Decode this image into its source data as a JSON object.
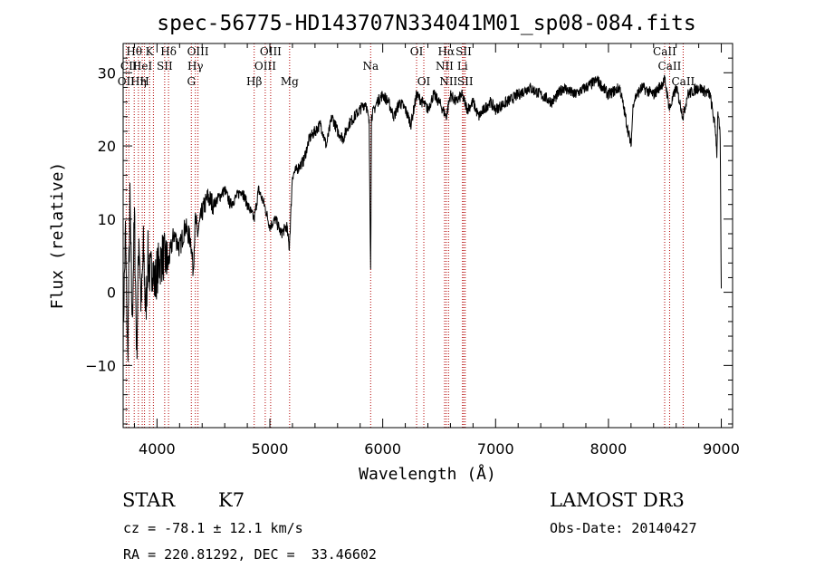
{
  "chart_data": {
    "type": "line",
    "title": "spec-56775-HD143707N334041M01_sp08-084.fits",
    "xlabel": "Wavelength (Å)",
    "ylabel": "Flux (relative)",
    "xlim": [
      3700,
      9100
    ],
    "ylim": [
      -18.5,
      34
    ],
    "x_ticks": [
      4000,
      5000,
      6000,
      7000,
      8000,
      9000
    ],
    "y_ticks": [
      -10,
      0,
      10,
      20,
      30
    ],
    "series": [
      {
        "name": "spectrum",
        "x": [
          3700,
          3720,
          3740,
          3760,
          3780,
          3800,
          3820,
          3840,
          3860,
          3880,
          3900,
          3920,
          3940,
          3960,
          3980,
          4000,
          4050,
          4100,
          4150,
          4200,
          4250,
          4300,
          4320,
          4340,
          4360,
          4400,
          4450,
          4500,
          4550,
          4600,
          4650,
          4700,
          4750,
          4800,
          4861,
          4900,
          4950,
          5000,
          5050,
          5100,
          5150,
          5172,
          5200,
          5250,
          5300,
          5350,
          5400,
          5450,
          5500,
          5550,
          5600,
          5650,
          5700,
          5750,
          5800,
          5850,
          5880,
          5893,
          5900,
          5950,
          6000,
          6050,
          6100,
          6150,
          6200,
          6250,
          6300,
          6350,
          6400,
          6450,
          6500,
          6563,
          6600,
          6650,
          6700,
          6750,
          6800,
          6850,
          6900,
          6950,
          7000,
          7100,
          7200,
          7300,
          7400,
          7500,
          7600,
          7700,
          7800,
          7900,
          8000,
          8100,
          8150,
          8200,
          8220,
          8250,
          8300,
          8400,
          8500,
          8542,
          8600,
          8662,
          8700,
          8800,
          8900,
          8950,
          8960,
          8970,
          8980,
          8990,
          9000
        ],
        "y": [
          -6,
          8,
          -9,
          12,
          -4,
          10,
          -8,
          8,
          -2,
          6,
          -3,
          5,
          2,
          4,
          1,
          3,
          5,
          4,
          8,
          6,
          9,
          7,
          3,
          10,
          8,
          11,
          13,
          12,
          13,
          14,
          12,
          13,
          14,
          12,
          10,
          14,
          12,
          9,
          10,
          8,
          9,
          6,
          16,
          17,
          18,
          21,
          22,
          23,
          20,
          24,
          22,
          21,
          23,
          24,
          25,
          26,
          23,
          3,
          24,
          26,
          27,
          26,
          24,
          26,
          25,
          23,
          27,
          26,
          25,
          27,
          26,
          24,
          27,
          26,
          27,
          25,
          26,
          24,
          25,
          26,
          25,
          26,
          27,
          28,
          27,
          26,
          28,
          27,
          28,
          29,
          27,
          28,
          24,
          20,
          26,
          27,
          28,
          27,
          29,
          25,
          28,
          24,
          27,
          28,
          27,
          22,
          19,
          25,
          23,
          21,
          0
        ]
      }
    ],
    "spectral_lines": [
      {
        "x": 3727,
        "label": "OII",
        "row": 3
      },
      {
        "x": 3750,
        "label": "CII",
        "row": 2
      },
      {
        "x": 3798,
        "label": "Hθ",
        "row": 1
      },
      {
        "x": 3835,
        "label": "Hη",
        "row": 3
      },
      {
        "x": 3869,
        "label": "HeI",
        "row": 2
      },
      {
        "x": 3889,
        "label": "H",
        "row": 3
      },
      {
        "x": 3934,
        "label": "K",
        "row": 1
      },
      {
        "x": 3968,
        "label": "",
        "row": 0
      },
      {
        "x": 4068,
        "label": "SII",
        "row": 2
      },
      {
        "x": 4102,
        "label": "Hδ",
        "row": 1
      },
      {
        "x": 4304,
        "label": "G",
        "row": 3
      },
      {
        "x": 4340,
        "label": "Hγ",
        "row": 2
      },
      {
        "x": 4363,
        "label": "OIII",
        "row": 1
      },
      {
        "x": 4861,
        "label": "Hβ",
        "row": 3
      },
      {
        "x": 4959,
        "label": "OIII",
        "row": 2
      },
      {
        "x": 5007,
        "label": "OIII",
        "row": 1
      },
      {
        "x": 5175,
        "label": "Mg",
        "row": 3
      },
      {
        "x": 5893,
        "label": "Na",
        "row": 2
      },
      {
        "x": 6300,
        "label": "OI",
        "row": 1
      },
      {
        "x": 6364,
        "label": "OI",
        "row": 3
      },
      {
        "x": 6548,
        "label": "NII",
        "row": 2
      },
      {
        "x": 6563,
        "label": "Hα",
        "row": 1
      },
      {
        "x": 6583,
        "label": "NII",
        "row": 3
      },
      {
        "x": 6707,
        "label": "Li",
        "row": 2
      },
      {
        "x": 6717,
        "label": "SII",
        "row": 1
      },
      {
        "x": 6731,
        "label": "SII",
        "row": 3
      },
      {
        "x": 8498,
        "label": "CaII",
        "row": 1
      },
      {
        "x": 8542,
        "label": "CaII",
        "row": 2
      },
      {
        "x": 8662,
        "label": "CaII",
        "row": 3
      }
    ]
  },
  "info": {
    "object_class": "STAR",
    "subclass": "K7",
    "survey": "LAMOST DR3",
    "redshift_text": "cz = -78.1 ± 12.1 km/s",
    "obs_date_text": "Obs-Date: 20140427",
    "coords_text": "RA = 220.81292, DEC =  33.46602"
  },
  "colors": {
    "spectrum": "#000000",
    "line_marker": "#b30000"
  }
}
